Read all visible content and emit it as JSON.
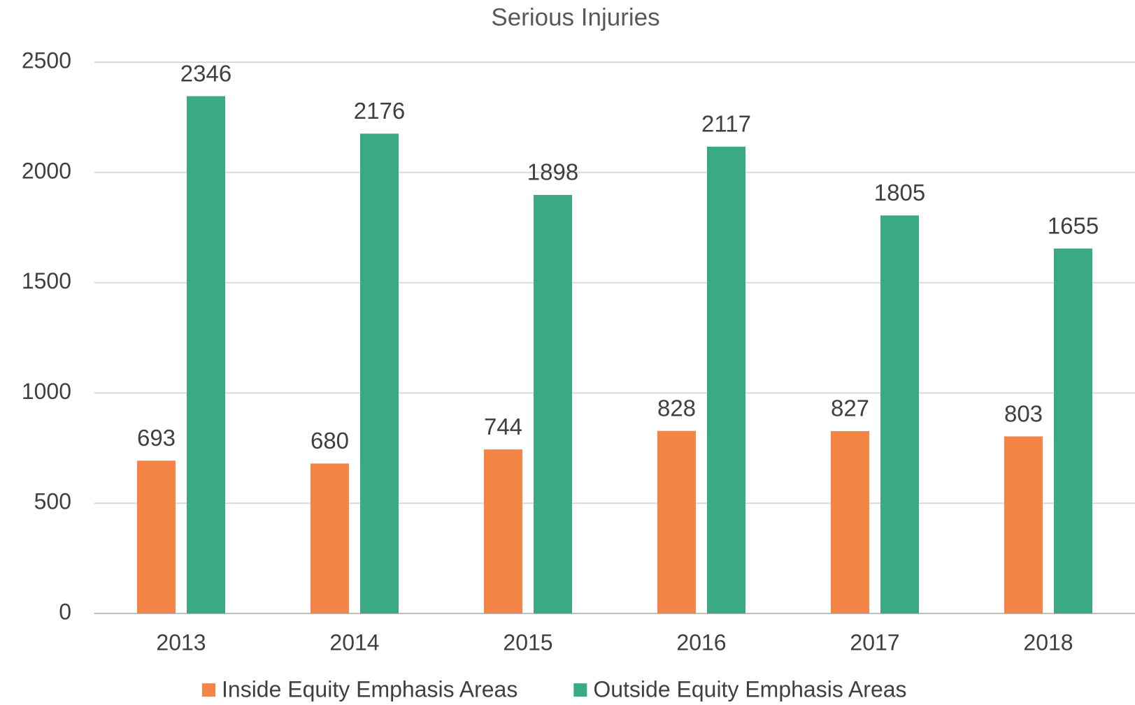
{
  "chart_data": {
    "type": "bar",
    "title": "Serious Injuries",
    "categories": [
      "2013",
      "2014",
      "2015",
      "2016",
      "2017",
      "2018"
    ],
    "series": [
      {
        "name": "Inside Equity Emphasis Areas",
        "color": "#f58447",
        "values": [
          693,
          680,
          744,
          828,
          827,
          803
        ]
      },
      {
        "name": "Outside Equity Emphasis Areas",
        "color": "#3aaa84",
        "values": [
          2346,
          2176,
          1898,
          2117,
          1805,
          1655
        ]
      }
    ],
    "ylim": [
      0,
      2500
    ],
    "yticks": [
      0,
      500,
      1000,
      1500,
      2000,
      2500
    ],
    "grid": true,
    "legend": "bottom",
    "data_labels": true
  }
}
